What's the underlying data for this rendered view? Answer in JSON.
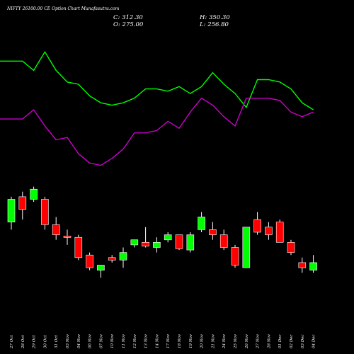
{
  "chart_data": {
    "type": "candlestick",
    "title": "NIFTY 26100.00 CE Option Chart Munafasutra.com",
    "ohlc_labels": {
      "close": "C: 312.30",
      "high": "H: 350.30",
      "open": "O: 275.00",
      "low": "L: 256.80"
    },
    "categories": [
      "27 Oct",
      "28 Oct",
      "29 Oct",
      "30 Oct",
      "31 Oct",
      "03 Nov",
      "04 Nov",
      "06 Nov",
      "07 Nov",
      "10 Nov",
      "11 Nov",
      "12 Nov",
      "13 Nov",
      "14 Nov",
      "17 Nov",
      "18 Nov",
      "19 Nov",
      "20 Nov",
      "21 Nov",
      "24 Nov",
      "25 Nov",
      "26 Nov",
      "27 Nov",
      "28 Nov",
      "01 Dec",
      "02 Dec",
      "03 Dec",
      "04 Dec"
    ],
    "candles": [
      {
        "open": 318,
        "high": 328,
        "low": 315,
        "close": 327
      },
      {
        "open": 328,
        "high": 330,
        "low": 319,
        "close": 323
      },
      {
        "open": 327,
        "high": 332,
        "low": 326,
        "close": 331
      },
      {
        "open": 327,
        "high": 328,
        "low": 315,
        "close": 317
      },
      {
        "open": 317,
        "high": 320,
        "low": 311,
        "close": 313
      },
      {
        "open": 312.5,
        "high": 315,
        "low": 309,
        "close": 312
      },
      {
        "open": 312,
        "high": 313,
        "low": 303,
        "close": 304
      },
      {
        "open": 305,
        "high": 306,
        "low": 299,
        "close": 300
      },
      {
        "open": 299,
        "high": 301,
        "low": 296,
        "close": 301
      },
      {
        "open": 304,
        "high": 305,
        "low": 302,
        "close": 303
      },
      {
        "open": 303,
        "high": 308,
        "low": 300,
        "close": 306
      },
      {
        "open": 309,
        "high": 311,
        "low": 308,
        "close": 311
      },
      {
        "open": 310,
        "high": 316,
        "low": 308,
        "close": 308.5
      },
      {
        "open": 308,
        "high": 312,
        "low": 306,
        "close": 310
      },
      {
        "open": 311,
        "high": 314,
        "low": 310,
        "close": 313
      },
      {
        "open": 313,
        "high": 313,
        "low": 307,
        "close": 307.5
      },
      {
        "open": 307,
        "high": 314,
        "low": 306,
        "close": 313
      },
      {
        "open": 315,
        "high": 322,
        "low": 314,
        "close": 320
      },
      {
        "open": 315,
        "high": 318,
        "low": 311,
        "close": 313
      },
      {
        "open": 313,
        "high": 315,
        "low": 307,
        "close": 308
      },
      {
        "open": 308,
        "high": 309,
        "low": 300,
        "close": 301
      },
      {
        "open": 300,
        "high": 316,
        "low": 300,
        "close": 316
      },
      {
        "open": 319,
        "high": 322,
        "low": 313,
        "close": 314
      },
      {
        "open": 316,
        "high": 318,
        "low": 311,
        "close": 313
      },
      {
        "open": 318,
        "high": 319,
        "low": 310,
        "close": 310
      },
      {
        "open": 310,
        "high": 311,
        "low": 305,
        "close": 306
      },
      {
        "open": 302,
        "high": 304,
        "low": 298,
        "close": 300
      },
      {
        "open": 299,
        "high": 305,
        "low": 298,
        "close": 302
      }
    ],
    "indicator_lines": [
      {
        "color": "#00ff00",
        "values": [
          73.5,
          73.5,
          71.5,
          75.5,
          71.5,
          69,
          68.5,
          66,
          64.5,
          64,
          64.5,
          65.5,
          67.5,
          67.5,
          67,
          68,
          66.5,
          68,
          71,
          68.5,
          66.5,
          63.5,
          69.5,
          69.5,
          69,
          67.5,
          64.5,
          63
        ]
      },
      {
        "color": "#cc00cc",
        "values": [
          61,
          61,
          63,
          59.5,
          56.5,
          57,
          53.5,
          51.5,
          51,
          52.5,
          54.5,
          58,
          58,
          58.5,
          60.5,
          59,
          62.5,
          65.5,
          64,
          61.5,
          59.5,
          65.5,
          65.5,
          65.5,
          65,
          62.5,
          61.5,
          62.5
        ]
      }
    ],
    "colors": {
      "up": "#00ff00",
      "down": "#ff0000",
      "wick": "#ffffff",
      "background": "#000000",
      "text": "#ffffff"
    },
    "grid": false
  }
}
